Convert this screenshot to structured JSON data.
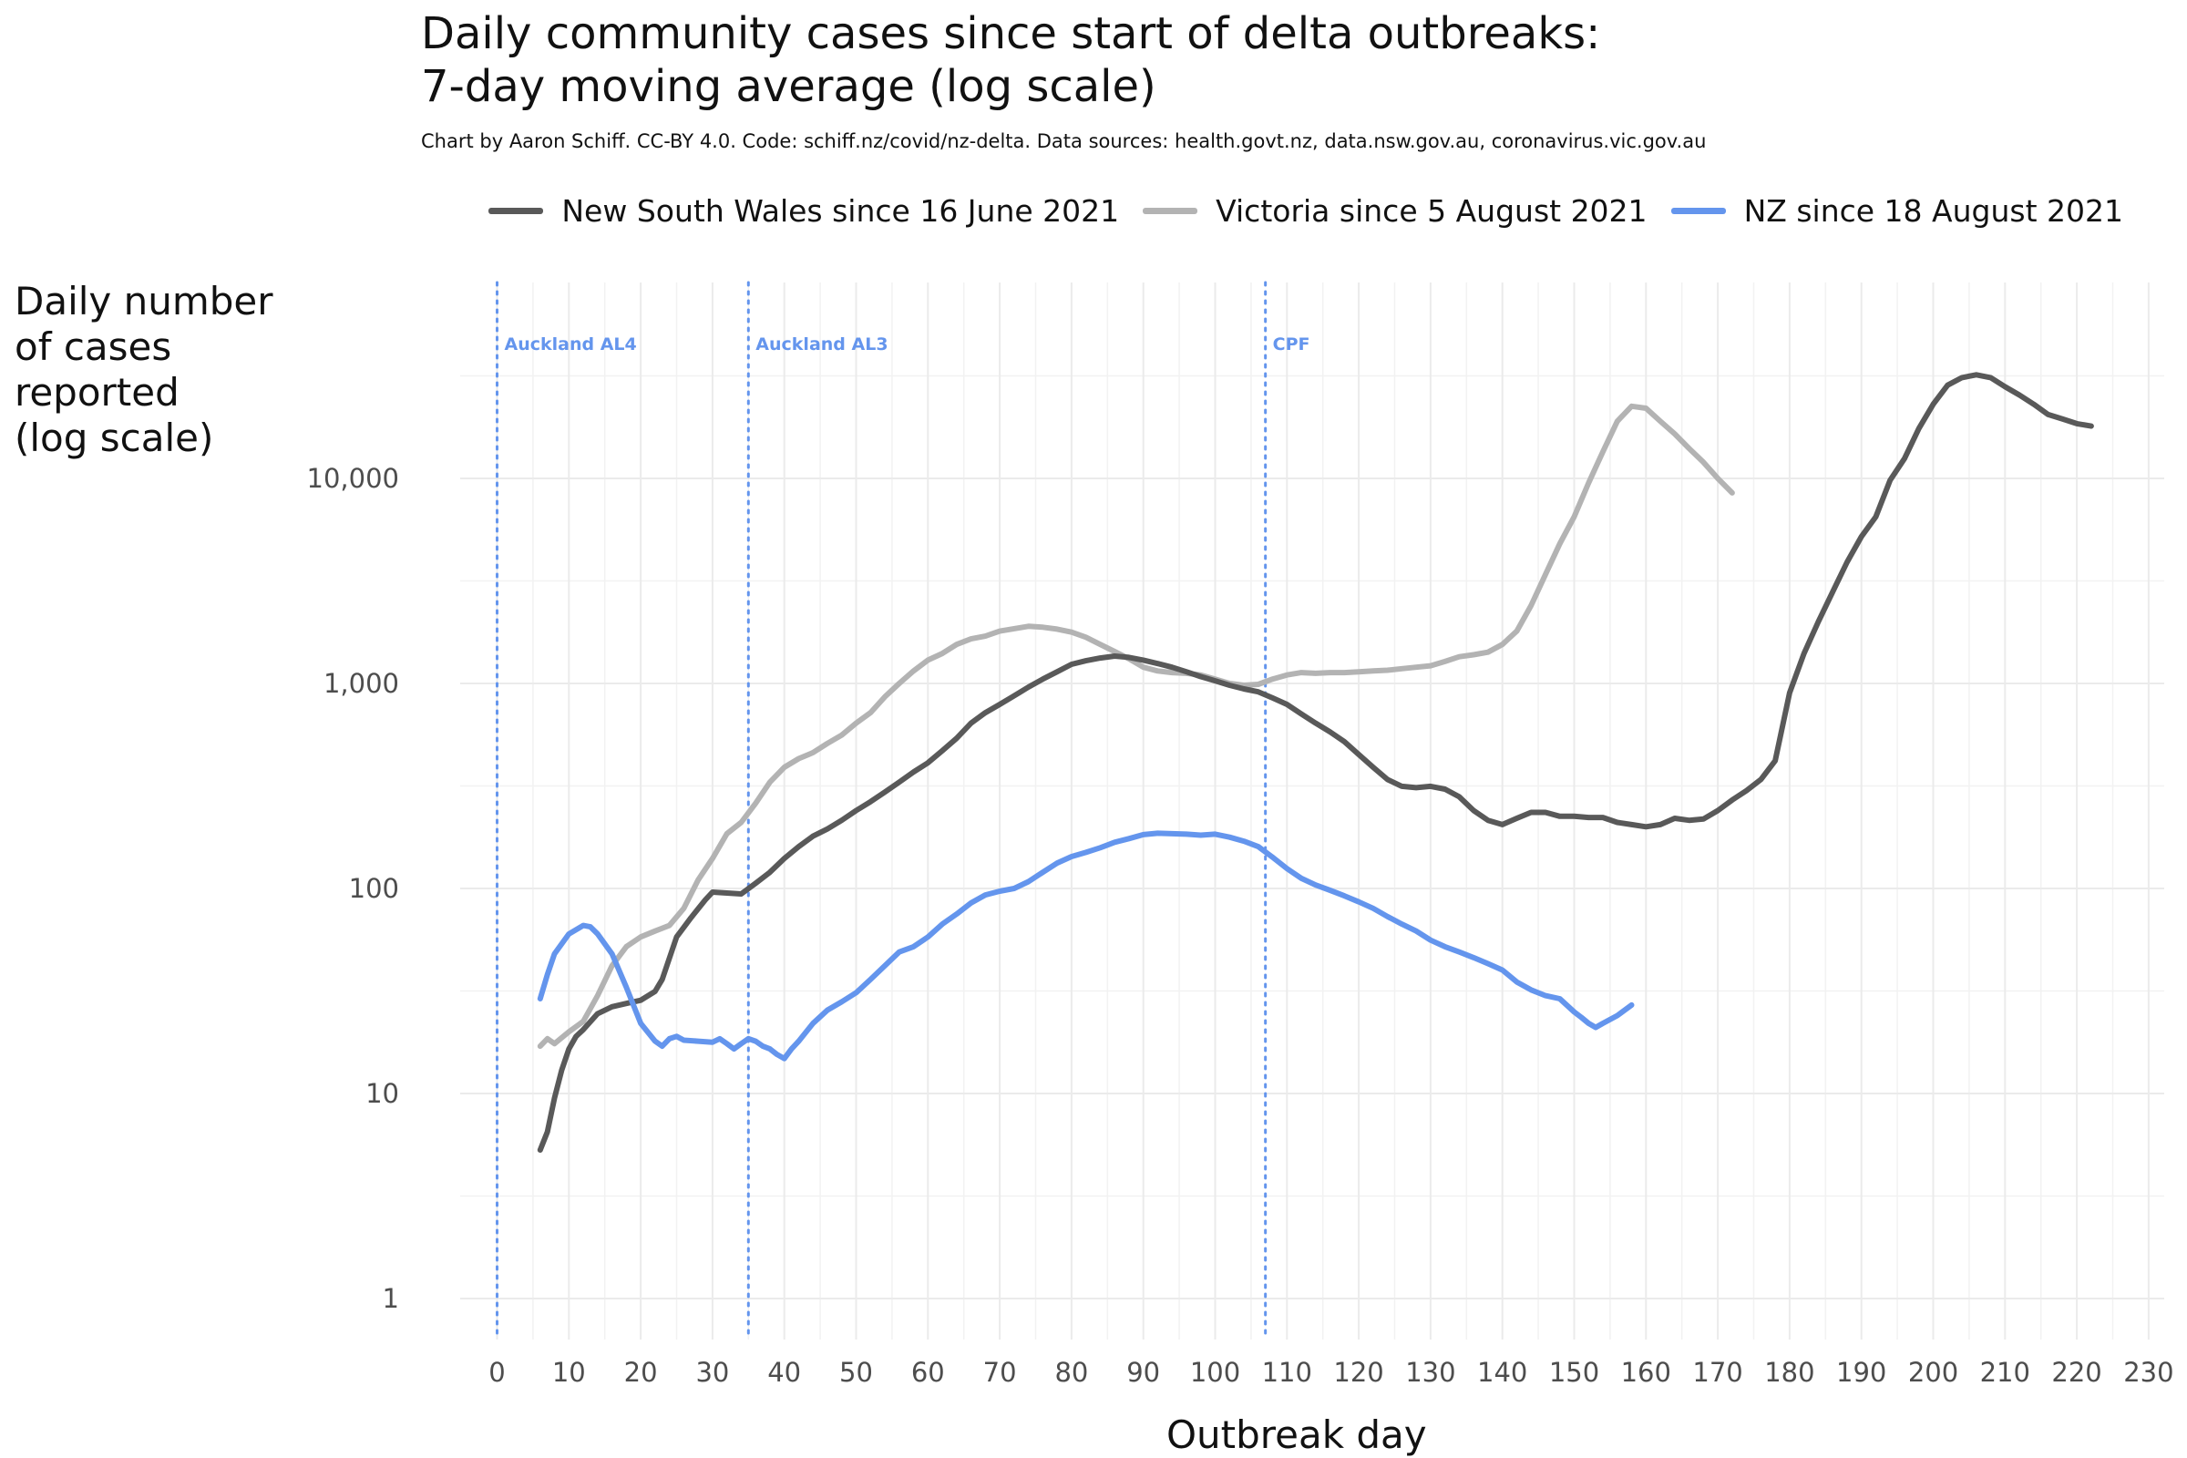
{
  "title": "Daily community cases since start of delta outbreaks:",
  "title_line2": "7-day moving average (log scale)",
  "subtitle": "Chart by Aaron Schiff. CC-BY 4.0. Code: schiff.nz/covid/nz-delta. Data sources: health.govt.nz, data.nsw.gov.au, coronavirus.vic.gov.au",
  "chart_data": {
    "type": "line",
    "title": "Daily community cases since start of delta outbreaks: 7-day moving average (log scale)",
    "xlabel": "Outbreak day",
    "ylabel_lines": [
      "Daily number",
      "of cases",
      "reported",
      "(log scale)"
    ],
    "y_scale": "log10",
    "xlim": [
      -2,
      232
    ],
    "ylim": [
      0.6,
      60000
    ],
    "x_ticks": [
      0,
      10,
      20,
      30,
      40,
      50,
      60,
      70,
      80,
      90,
      100,
      110,
      120,
      130,
      140,
      150,
      160,
      170,
      180,
      190,
      200,
      210,
      220,
      230
    ],
    "y_ticks": [
      1,
      10,
      100,
      1000,
      10000
    ],
    "y_tick_labels": [
      "1",
      "10",
      "100",
      "1,000",
      "10,000"
    ],
    "grid": true,
    "legend_position": "top",
    "annotations": [
      {
        "x": 0,
        "label": "Auckland AL4"
      },
      {
        "x": 35,
        "label": "Auckland AL3"
      },
      {
        "x": 107,
        "label": "CPF"
      }
    ],
    "series": [
      {
        "name": "New South Wales since 16 June 2021",
        "color": "#595959",
        "x": [
          6,
          7,
          8,
          9,
          10,
          11,
          12,
          14,
          16,
          18,
          20,
          22,
          23,
          25,
          27,
          29,
          30,
          32,
          34,
          36,
          38,
          40,
          42,
          44,
          46,
          48,
          50,
          52,
          54,
          56,
          58,
          60,
          62,
          64,
          66,
          68,
          70,
          72,
          74,
          76,
          78,
          80,
          82,
          84,
          86,
          88,
          90,
          92,
          94,
          96,
          98,
          100,
          102,
          104,
          106,
          108,
          110,
          112,
          114,
          116,
          118,
          120,
          122,
          124,
          126,
          128,
          130,
          132,
          134,
          136,
          138,
          140,
          142,
          144,
          146,
          148,
          150,
          152,
          154,
          156,
          158,
          160,
          162,
          164,
          166,
          168,
          170,
          172,
          174,
          176,
          178,
          180,
          182,
          184,
          186,
          188,
          190,
          192,
          194,
          196,
          198,
          200,
          202,
          204,
          206,
          208,
          210,
          212,
          214,
          216,
          218,
          220,
          222
        ],
        "values": [
          5.3,
          6.5,
          9.5,
          13,
          16.5,
          19,
          20.5,
          24.5,
          26.5,
          27.5,
          28.5,
          31.5,
          36,
          58,
          72,
          88,
          96,
          95,
          94,
          106,
          120,
          140,
          160,
          180,
          195,
          215,
          240,
          265,
          295,
          330,
          370,
          410,
          470,
          540,
          640,
          720,
          790,
          870,
          960,
          1050,
          1140,
          1240,
          1290,
          1330,
          1360,
          1340,
          1300,
          1250,
          1200,
          1140,
          1080,
          1030,
          980,
          940,
          910,
          850,
          790,
          710,
          640,
          580,
          520,
          450,
          390,
          340,
          315,
          310,
          315,
          305,
          280,
          240,
          215,
          205,
          220,
          235,
          235,
          225,
          225,
          222,
          222,
          210,
          205,
          200,
          205,
          220,
          215,
          218,
          240,
          270,
          300,
          340,
          420,
          900,
          1400,
          2000,
          2800,
          3900,
          5200,
          6500,
          9800,
          12500,
          17500,
          23000,
          28500,
          31000,
          32000,
          31000,
          28000,
          25500,
          23000,
          20500,
          19500,
          18500,
          18000
        ]
      },
      {
        "name": "Victoria since 5 August 2021",
        "color": "#b3b3b3",
        "x": [
          6,
          7,
          8,
          10,
          12,
          14,
          16,
          18,
          20,
          22,
          24,
          26,
          28,
          30,
          32,
          34,
          36,
          38,
          40,
          42,
          44,
          46,
          48,
          50,
          52,
          54,
          56,
          58,
          60,
          62,
          64,
          66,
          68,
          70,
          72,
          74,
          76,
          78,
          80,
          82,
          84,
          86,
          88,
          90,
          92,
          94,
          96,
          98,
          100,
          102,
          104,
          106,
          108,
          110,
          112,
          114,
          116,
          118,
          120,
          122,
          124,
          126,
          128,
          130,
          132,
          134,
          136,
          138,
          140,
          142,
          144,
          146,
          148,
          150,
          152,
          154,
          156,
          158,
          160,
          162,
          164,
          166,
          168,
          170,
          172
        ],
        "values": [
          17,
          18.5,
          17.5,
          20,
          22.5,
          30,
          42,
          52,
          58,
          62,
          66,
          80,
          110,
          140,
          185,
          210,
          260,
          330,
          390,
          430,
          460,
          510,
          560,
          640,
          720,
          860,
          1000,
          1150,
          1300,
          1400,
          1550,
          1650,
          1700,
          1800,
          1850,
          1900,
          1880,
          1840,
          1780,
          1680,
          1550,
          1430,
          1320,
          1200,
          1150,
          1130,
          1120,
          1100,
          1050,
          1000,
          980,
          990,
          1050,
          1100,
          1130,
          1120,
          1130,
          1130,
          1140,
          1150,
          1160,
          1180,
          1200,
          1220,
          1280,
          1350,
          1380,
          1420,
          1550,
          1800,
          2400,
          3400,
          4800,
          6500,
          9500,
          13500,
          19000,
          22500,
          22000,
          19000,
          16500,
          14000,
          12000,
          10000,
          8500
        ]
      },
      {
        "name": "NZ since 18 August 2021",
        "color": "#6495ed",
        "x": [
          6,
          7,
          8,
          10,
          12,
          13,
          14,
          16,
          18,
          20,
          22,
          23,
          24,
          25,
          26,
          28,
          30,
          31,
          32,
          33,
          34,
          35,
          36,
          37,
          38,
          39,
          40,
          41,
          42,
          44,
          46,
          48,
          50,
          52,
          54,
          56,
          58,
          60,
          62,
          64,
          66,
          68,
          70,
          72,
          74,
          76,
          78,
          80,
          82,
          84,
          86,
          88,
          90,
          92,
          94,
          96,
          98,
          100,
          102,
          104,
          106,
          108,
          110,
          112,
          114,
          116,
          118,
          120,
          122,
          124,
          126,
          128,
          130,
          132,
          134,
          136,
          138,
          140,
          142,
          144,
          146,
          148,
          150,
          151,
          152,
          153,
          154,
          156,
          158
        ],
        "values": [
          29,
          38,
          48,
          60,
          66,
          65,
          60,
          48,
          33,
          22,
          18,
          17,
          18.5,
          19,
          18.2,
          18,
          17.8,
          18.5,
          17.5,
          16.5,
          17.5,
          18.5,
          18,
          17,
          16.5,
          15.5,
          14.8,
          16.5,
          18,
          22,
          25.5,
          28,
          31,
          36,
          42,
          49,
          52,
          58,
          67,
          75,
          85,
          93,
          97,
          100,
          108,
          120,
          133,
          143,
          150,
          158,
          168,
          175,
          183,
          186,
          185,
          184,
          182,
          184,
          178,
          170,
          160,
          142,
          125,
          112,
          104,
          98,
          92,
          86,
          80,
          73,
          67,
          62,
          56,
          52,
          49,
          46,
          43,
          40,
          35,
          32,
          30,
          29,
          25,
          23.5,
          22,
          21,
          22,
          24,
          27
        ]
      }
    ]
  }
}
